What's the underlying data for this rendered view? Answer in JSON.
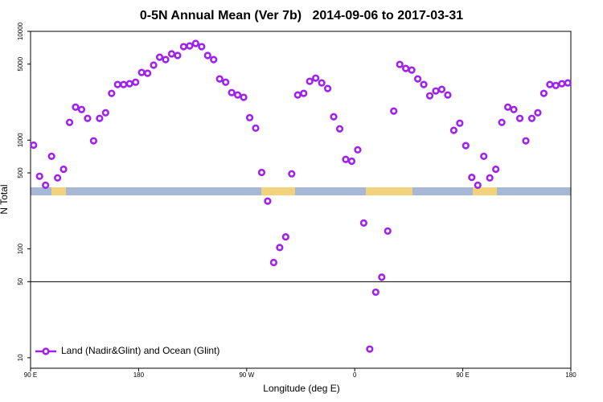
{
  "chart_data": {
    "type": "scatter",
    "title": "0-5N Annual Mean (Ver 7b)   2014-09-06 to 2017-03-31",
    "x_label": "Longitude (deg E)",
    "y_label": "N Total",
    "log_y": true,
    "legend_position": "bottom-left",
    "reference_line": 50,
    "xlim": [
      90,
      540
    ],
    "xticks": [
      {
        "value": 90,
        "label": "90 E"
      },
      180,
      {
        "value": 270,
        "label": "90 W"
      },
      {
        "value": 360,
        "label": "0"
      },
      {
        "value": 450,
        "label": "90 E"
      },
      {
        "value": 540,
        "label": "180"
      }
    ],
    "ylim": [
      8,
      10000
    ],
    "yticks": [
      10,
      50,
      100,
      500,
      1000,
      5000,
      10000
    ],
    "series": [
      {
        "name": "Land (Nadir&Glint) and Ocean (Glint)",
        "color": "#a020f0",
        "x": [
          92.5,
          97.5,
          102.5,
          107.5,
          112.5,
          117.5,
          122.5,
          127.5,
          132.5,
          137.5,
          142.5,
          147.5,
          152.5,
          157.5,
          162.5,
          167.5,
          172.5,
          177.5,
          182.5,
          187.5,
          192.5,
          197.5,
          202.5,
          207.5,
          212.5,
          217.5,
          222.5,
          227.5,
          232.5,
          237.5,
          242.5,
          247.5,
          252.5,
          257.5,
          262.5,
          267.5,
          272.5,
          277.5,
          282.5,
          287.5,
          292.5,
          297.5,
          302.5,
          307.5,
          312.5,
          317.5,
          322.5,
          327.5,
          332.5,
          337.5,
          342.5,
          347.5,
          352.5,
          357.5,
          362.5,
          367.5,
          372.5,
          377.5,
          382.5,
          387.5,
          392.5,
          397.5,
          402.5,
          407.5,
          412.5,
          417.5,
          422.5,
          427.5,
          432.5,
          437.5,
          442.5,
          447.5,
          452.5,
          457.5,
          462.5,
          467.5,
          472.5,
          477.5,
          482.5,
          487.5,
          492.5,
          497.5,
          502.5,
          507.5,
          512.5,
          517.5,
          522.5,
          527.5,
          532.5,
          537.5
        ],
        "values": [
          900,
          465,
          385,
          710,
          450,
          540,
          1455,
          2010,
          1910,
          1585,
          985,
          1585,
          1785,
          2690,
          3245,
          3245,
          3300,
          3410,
          4190,
          4120,
          4890,
          5790,
          5500,
          6210,
          6000,
          7230,
          7350,
          7750,
          7230,
          6000,
          5500,
          3655,
          3410,
          2735,
          2600,
          2475,
          1610,
          1290,
          505,
          275,
          75,
          103,
          129,
          490,
          2600,
          2690,
          3475,
          3715,
          3360,
          2980,
          1640,
          1270,
          665,
          640,
          815,
          173,
          12,
          40,
          55,
          146,
          1850,
          4970,
          4560,
          4410,
          3655,
          3245,
          2555,
          2830,
          2930,
          2600,
          1230,
          1430,
          890,
          455,
          385,
          710,
          450,
          540,
          1455,
          2010,
          1910,
          1585,
          985,
          1585,
          1785,
          2690,
          3245,
          3180,
          3300,
          3360
        ]
      }
    ]
  }
}
